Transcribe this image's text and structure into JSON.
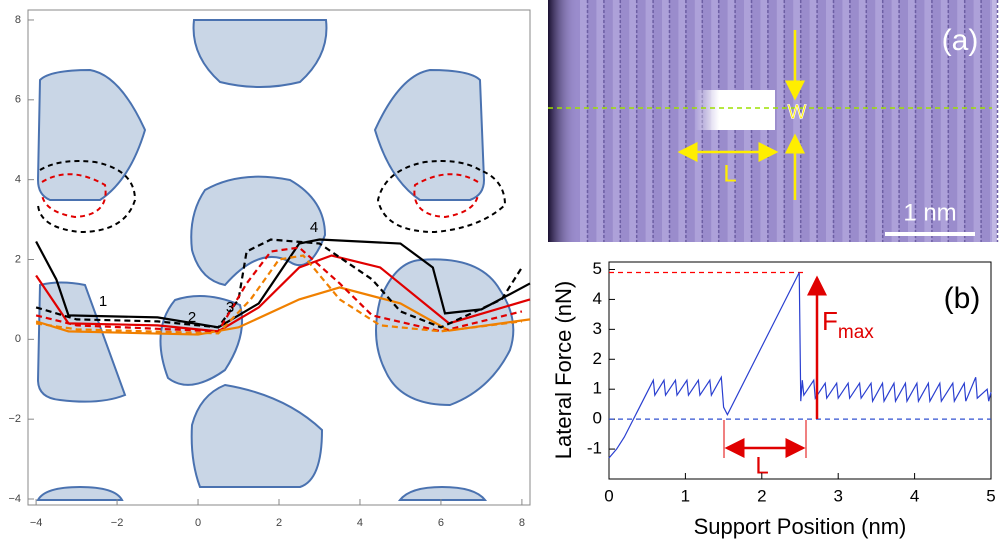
{
  "chart_data": [
    {
      "type": "line",
      "xlim": [
        -4.2,
        8.2
      ],
      "ylim": [
        -4.15,
        8.25
      ],
      "xticks": [
        {
          "value": -4,
          "label": "−4"
        },
        {
          "value": -2,
          "label": "−2"
        },
        0,
        2,
        4,
        6,
        8
      ],
      "yticks": [
        {
          "value": -4,
          "label": "−4"
        },
        {
          "value": -2,
          "label": "−2"
        },
        0,
        2,
        4,
        6,
        8
      ],
      "annotations": [
        "1",
        "2",
        "3",
        "4"
      ],
      "series": [
        {
          "color": "#000000",
          "dashed": false,
          "x": [
            -4,
            -3.5,
            -3.2,
            -1,
            0.5,
            1.5,
            2.5,
            3,
            5,
            5.8,
            6.1,
            7,
            8.2
          ],
          "values": [
            2.45,
            1.5,
            0.6,
            0.55,
            0.3,
            0.9,
            2.4,
            2.5,
            2.4,
            1.8,
            0.65,
            0.75,
            1.4
          ]
        },
        {
          "color": "#e00000",
          "dashed": false,
          "x": [
            -4,
            -3.2,
            -1,
            0.5,
            1.5,
            2.5,
            3.3,
            4.5,
            6.2,
            8.2
          ],
          "values": [
            1.6,
            0.4,
            0.35,
            0.2,
            0.8,
            1.8,
            2.1,
            1.8,
            0.4,
            1.0
          ]
        },
        {
          "color": "#f08000",
          "dashed": false,
          "x": [
            -4,
            -3.2,
            0,
            1,
            2.5,
            3.5,
            5,
            6.2,
            8.2
          ],
          "values": [
            0.45,
            0.2,
            0.12,
            0.3,
            1.0,
            1.3,
            0.9,
            0.22,
            0.5
          ]
        },
        {
          "color": "#000000",
          "dashed": true,
          "x": [
            -4,
            -3,
            -1,
            0.5,
            1,
            1.2,
            1.8,
            3,
            4.3,
            5,
            6,
            7.5,
            8
          ],
          "values": [
            0.8,
            0.5,
            0.45,
            0.3,
            1,
            2.2,
            2.5,
            2.4,
            1.5,
            0.7,
            0.3,
            1.0,
            1.8
          ]
        },
        {
          "color": "#e00000",
          "dashed": true,
          "x": [
            -4,
            -3,
            0.5,
            1.2,
            1.8,
            2.5,
            3.5,
            4.3,
            6,
            8
          ],
          "values": [
            0.6,
            0.35,
            0.2,
            1.4,
            2.2,
            2.3,
            1.4,
            0.6,
            0.2,
            0.7
          ]
        },
        {
          "color": "#f08000",
          "dashed": true,
          "x": [
            -4,
            -3,
            0.5,
            1.3,
            2,
            2.6,
            3.5,
            4.5,
            6,
            8
          ],
          "values": [
            0.4,
            0.25,
            0.15,
            1.0,
            2.0,
            2.1,
            1.0,
            0.35,
            0.2,
            0.45
          ]
        }
      ]
    },
    {
      "type": "line",
      "x_label": "Support Position (nm)",
      "y_label": "Lateral Force (nN)",
      "xlim": [
        0,
        5
      ],
      "ylim": [
        -2,
        5.25
      ],
      "xticks": [
        0,
        1,
        2,
        3,
        4,
        5
      ],
      "yticks": [
        -1,
        0,
        1,
        2,
        3,
        4,
        5
      ],
      "panel_label": "(b)",
      "fmax_label": {
        "main": "F",
        "sub": "max"
      },
      "length_label": "L",
      "reference_lines": [
        {
          "value": 4.9,
          "color": "#ff0000"
        },
        {
          "value": 0,
          "color": "#3050d0"
        }
      ],
      "series": [
        {
          "color": "#2a3fd0",
          "dashed": false,
          "x": [
            0,
            0.1,
            0.2,
            0.3,
            0.4,
            0.5,
            0.58,
            0.6,
            0.72,
            0.74,
            0.87,
            0.89,
            1.02,
            1.04,
            1.17,
            1.19,
            1.32,
            1.34,
            1.47,
            1.5,
            1.55,
            2.49,
            2.51,
            2.53,
            2.55,
            2.68,
            2.7,
            2.83,
            2.85,
            2.98,
            3.0,
            3.13,
            3.15,
            3.28,
            3.3,
            3.43,
            3.45,
            3.58,
            3.6,
            3.73,
            3.75,
            3.88,
            3.9,
            4.03,
            4.05,
            4.18,
            4.2,
            4.33,
            4.35,
            4.5,
            4.52,
            4.65,
            4.67,
            4.8,
            4.82,
            4.95,
            4.97,
            5.0
          ],
          "values": [
            -1.3,
            -1.0,
            -0.6,
            -0.1,
            0.4,
            0.9,
            1.3,
            0.8,
            1.3,
            0.8,
            1.3,
            0.8,
            1.3,
            0.8,
            1.3,
            0.8,
            1.3,
            0.8,
            1.4,
            0.4,
            0.15,
            4.9,
            0.6,
            1.3,
            0.8,
            1.3,
            0.7,
            1.2,
            0.7,
            1.2,
            0.7,
            1.2,
            0.7,
            1.2,
            0.7,
            1.2,
            0.6,
            1.2,
            0.6,
            1.2,
            0.6,
            1.2,
            0.6,
            1.2,
            0.6,
            1.2,
            0.6,
            1.2,
            0.6,
            1.2,
            0.6,
            1.2,
            0.6,
            1.4,
            0.7,
            1.0,
            0.6,
            0.9
          ]
        }
      ]
    }
  ],
  "image_panel": {
    "panel_label": "(a)",
    "width_label": "W",
    "length_label": "L",
    "scale_label": "1 nm"
  }
}
